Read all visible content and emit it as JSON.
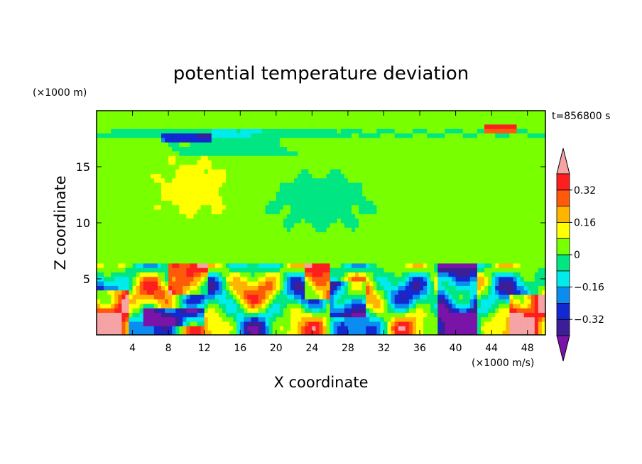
{
  "chart_data": {
    "type": "heatmap",
    "title": "potential temperature deviation",
    "xlabel": "X coordinate",
    "ylabel": "Z coordinate",
    "x_unit": "(×1000 m/s)",
    "y_unit": "(×1000 m)",
    "time_label": "t=856800 s",
    "xlim": [
      0,
      50
    ],
    "ylim": [
      0,
      20
    ],
    "x_ticks": [
      4,
      8,
      12,
      16,
      20,
      24,
      28,
      32,
      36,
      40,
      44,
      48
    ],
    "y_ticks": [
      5,
      10,
      15
    ],
    "colorbar": {
      "levels": [
        -0.4,
        -0.32,
        -0.24,
        -0.16,
        -0.08,
        0,
        0.08,
        0.16,
        0.24,
        0.32,
        0.4
      ],
      "labels": [
        "0.32",
        "0.16",
        "0",
        "−0.16",
        "−0.32"
      ],
      "label_values": [
        0.32,
        0.16,
        0,
        -0.16,
        -0.32
      ],
      "colors": [
        "#7a14a8",
        "#3c1e96",
        "#1428d2",
        "#0a8cf0",
        "#00ebeb",
        "#00e682",
        "#78ff00",
        "#ffff00",
        "#ffb400",
        "#ff5a0a",
        "#ff1e1e",
        "#f5a3a5"
      ],
      "extend": "both"
    }
  }
}
